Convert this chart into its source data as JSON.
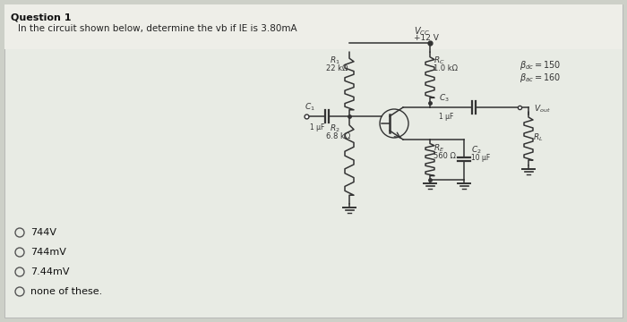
{
  "title": "Question 1",
  "question_text": "In the circuit shown below, determine the vb if IE is 3.80mA",
  "choices": [
    "744V",
    "744mV",
    "7.44mV",
    "none of these."
  ],
  "bg_color": "#dde0d8",
  "panel_bg": "#f0f0ec",
  "text_color": "#222222",
  "circuit": {
    "Vcc": "V_CC",
    "Vcc_val": "+12 V",
    "R1_label": "R_1",
    "R1_val": "22 kΩ",
    "R2_label": "R_2",
    "R2_val": "6.8 kΩ",
    "Rc_label": "R_C",
    "Rc_val": "1.0 kΩ",
    "Re_label": "R_E",
    "Re_val": "560 Ω",
    "C1_label": "C_1",
    "C1_val": "1 μF",
    "C2_label": "C_2",
    "C2_val": "10 μF",
    "C3_label": "C_3",
    "C3_val": "1 μF",
    "Bdc_label": "β_dc = 150",
    "Bac_label": "β_ac = 160",
    "Vout_label": "V_out",
    "RL_label": "R_L"
  }
}
